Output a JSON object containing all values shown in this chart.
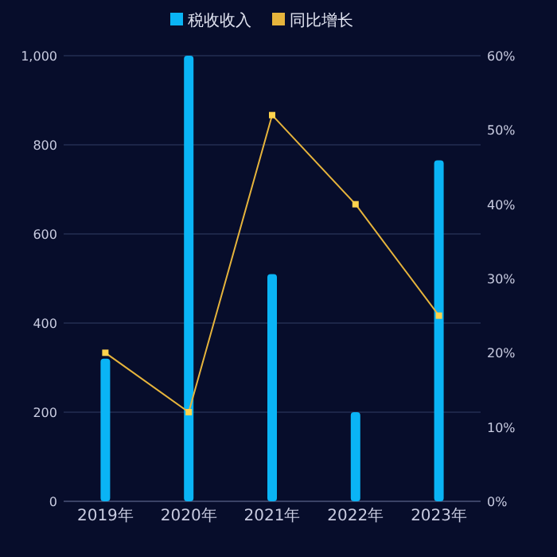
{
  "chart_data": {
    "type": "bar",
    "categories": [
      "2019年",
      "2020年",
      "2021年",
      "2022年",
      "2023年"
    ],
    "series": [
      {
        "name": "税收收入",
        "color": "#0ab4f5",
        "values": [
          320,
          1000,
          510,
          200,
          765
        ]
      },
      {
        "name": "同比增长",
        "type": "line",
        "axis": "y2",
        "color": "#e6b43c",
        "values": [
          20,
          12,
          52,
          40,
          25
        ]
      }
    ],
    "ylim": [
      0,
      1000
    ],
    "yticks": [
      0,
      200,
      400,
      600,
      800,
      {
        "value": 1000,
        "label": "1,000"
      }
    ],
    "y2lim": [
      0,
      60
    ],
    "y2ticks": [
      {
        "value": 0,
        "label": "0%"
      },
      {
        "value": 10,
        "label": "10%"
      },
      {
        "value": 20,
        "label": "20%"
      },
      {
        "value": 30,
        "label": "30%"
      },
      {
        "value": 40,
        "label": "40%"
      },
      {
        "value": 50,
        "label": "50%"
      },
      {
        "value": 60,
        "label": "60%"
      }
    ],
    "grid": "y",
    "legend": "top",
    "marker": "square"
  }
}
